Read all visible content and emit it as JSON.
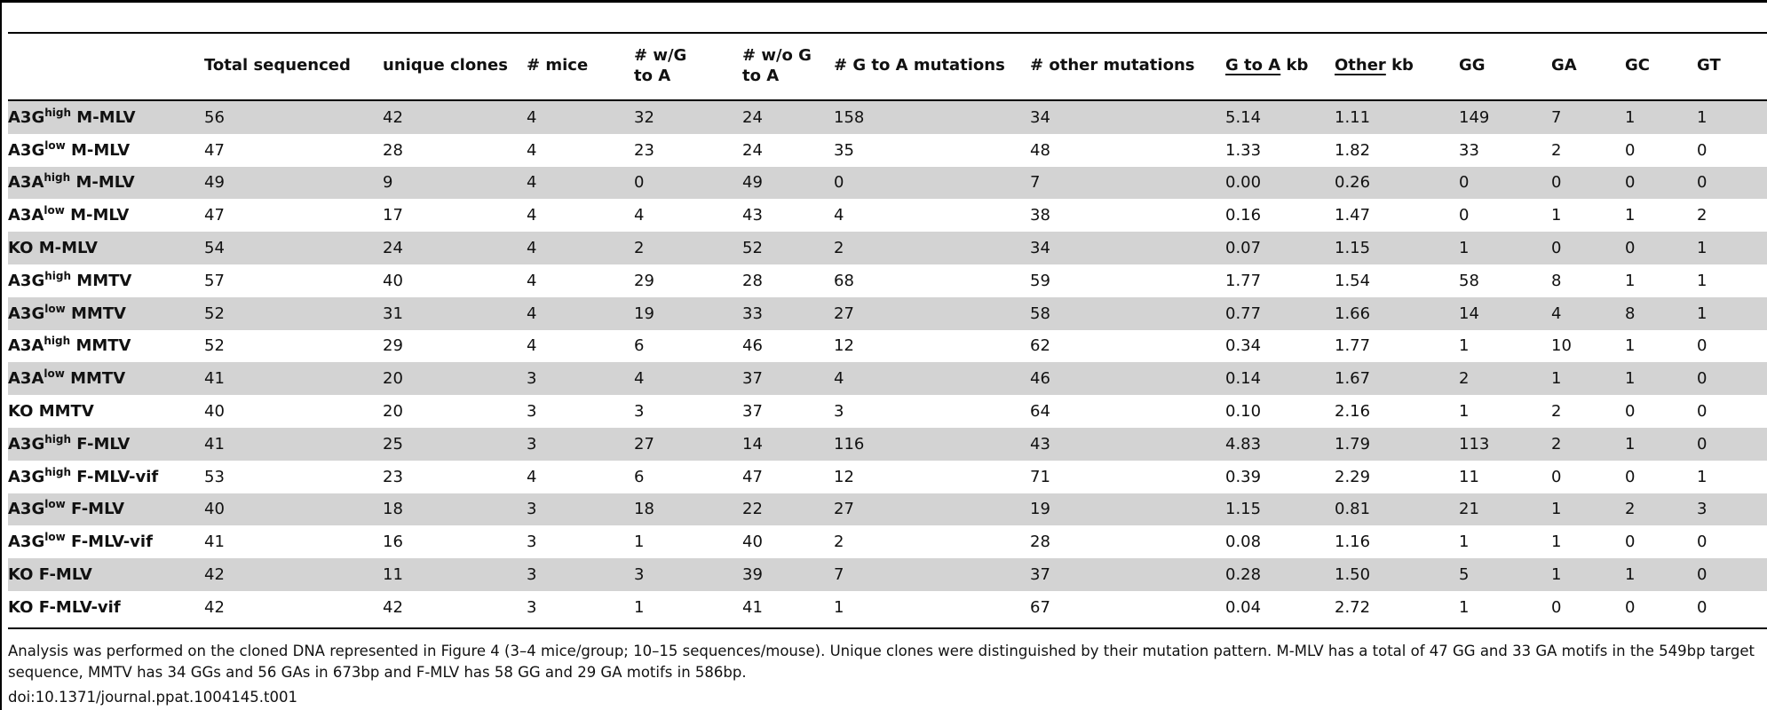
{
  "columns": [
    {
      "line1": "",
      "line2": ""
    },
    {
      "line1": "Total sequenced",
      "line2": ""
    },
    {
      "line1": "unique clones",
      "line2": ""
    },
    {
      "line1": "# mice",
      "line2": ""
    },
    {
      "line1": "# w/G",
      "line2": "to A"
    },
    {
      "line1": "# w/o G",
      "line2": "to A"
    },
    {
      "line1": "# G to A mutations",
      "line2": ""
    },
    {
      "line1": "# other mutations",
      "line2": ""
    },
    {
      "line1": "G to A",
      "line2": " kb"
    },
    {
      "line1": "Other",
      "line2": " kb"
    },
    {
      "line1": "GG",
      "line2": ""
    },
    {
      "line1": "GA",
      "line2": ""
    },
    {
      "line1": "GC",
      "line2": ""
    },
    {
      "line1": "GT",
      "line2": ""
    }
  ],
  "rows": [
    {
      "base": "A3G",
      "sup": "high",
      "virus": " M-MLV",
      "cells": [
        "56",
        "42",
        "4",
        "32",
        "24",
        "158",
        "34",
        "5.14",
        "1.11",
        "149",
        "7",
        "1",
        "1"
      ]
    },
    {
      "base": "A3G",
      "sup": "low",
      "virus": " M-MLV",
      "cells": [
        "47",
        "28",
        "4",
        "23",
        "24",
        "35",
        "48",
        "1.33",
        "1.82",
        "33",
        "2",
        "0",
        "0"
      ]
    },
    {
      "base": "A3A",
      "sup": "high",
      "virus": " M-MLV",
      "cells": [
        "49",
        "9",
        "4",
        "0",
        "49",
        "0",
        "7",
        "0.00",
        "0.26",
        "0",
        "0",
        "0",
        "0"
      ]
    },
    {
      "base": "A3A",
      "sup": "low",
      "virus": " M-MLV",
      "cells": [
        "47",
        "17",
        "4",
        "4",
        "43",
        "4",
        "38",
        "0.16",
        "1.47",
        "0",
        "1",
        "1",
        "2"
      ]
    },
    {
      "base": "KO",
      "sup": "",
      "virus": " M-MLV",
      "cells": [
        "54",
        "24",
        "4",
        "2",
        "52",
        "2",
        "34",
        "0.07",
        "1.15",
        "1",
        "0",
        "0",
        "1"
      ]
    },
    {
      "base": "A3G",
      "sup": "high",
      "virus": " MMTV",
      "cells": [
        "57",
        "40",
        "4",
        "29",
        "28",
        "68",
        "59",
        "1.77",
        "1.54",
        "58",
        "8",
        "1",
        "1"
      ]
    },
    {
      "base": "A3G",
      "sup": "low",
      "virus": " MMTV",
      "cells": [
        "52",
        "31",
        "4",
        "19",
        "33",
        "27",
        "58",
        "0.77",
        "1.66",
        "14",
        "4",
        "8",
        "1"
      ]
    },
    {
      "base": "A3A",
      "sup": "high",
      "virus": " MMTV",
      "cells": [
        "52",
        "29",
        "4",
        "6",
        "46",
        "12",
        "62",
        "0.34",
        "1.77",
        "1",
        "10",
        "1",
        "0"
      ]
    },
    {
      "base": "A3A",
      "sup": "low",
      "virus": " MMTV",
      "cells": [
        "41",
        "20",
        "3",
        "4",
        "37",
        "4",
        "46",
        "0.14",
        "1.67",
        "2",
        "1",
        "1",
        "0"
      ]
    },
    {
      "base": "KO",
      "sup": "",
      "virus": " MMTV",
      "cells": [
        "40",
        "20",
        "3",
        "3",
        "37",
        "3",
        "64",
        "0.10",
        "2.16",
        "1",
        "2",
        "0",
        "0"
      ]
    },
    {
      "base": "A3G",
      "sup": "high",
      "virus": " F-MLV",
      "cells": [
        "41",
        "25",
        "3",
        "27",
        "14",
        "116",
        "43",
        "4.83",
        "1.79",
        "113",
        "2",
        "1",
        "0"
      ]
    },
    {
      "base": "A3G",
      "sup": "high",
      "virus": " F-MLV-vif",
      "cells": [
        "53",
        "23",
        "4",
        "6",
        "47",
        "12",
        "71",
        "0.39",
        "2.29",
        "11",
        "0",
        "0",
        "1"
      ]
    },
    {
      "base": "A3G",
      "sup": "low",
      "virus": " F-MLV",
      "cells": [
        "40",
        "18",
        "3",
        "18",
        "22",
        "27",
        "19",
        "1.15",
        "0.81",
        "21",
        "1",
        "2",
        "3"
      ]
    },
    {
      "base": "A3G",
      "sup": "low",
      "virus": " F-MLV-vif",
      "cells": [
        "41",
        "16",
        "3",
        "1",
        "40",
        "2",
        "28",
        "0.08",
        "1.16",
        "1",
        "1",
        "0",
        "0"
      ]
    },
    {
      "base": "KO",
      "sup": "",
      "virus": " F-MLV",
      "cells": [
        "42",
        "11",
        "3",
        "3",
        "39",
        "7",
        "37",
        "0.28",
        "1.50",
        "5",
        "1",
        "1",
        "0"
      ]
    },
    {
      "base": "KO",
      "sup": "",
      "virus": " F-MLV-vif",
      "cells": [
        "42",
        "42",
        "3",
        "1",
        "41",
        "1",
        "67",
        "0.04",
        "2.72",
        "1",
        "0",
        "0",
        "0"
      ]
    }
  ],
  "footnote": "Analysis was performed on the cloned DNA represented in Figure 4 (3–4 mice/group; 10–15 sequences/mouse). Unique clones were distinguished by their mutation pattern. M-MLV has a total of 47 GG and 33 GA motifs in the 549bp target sequence, MMTV has 34 GGs and 56 GAs in 673bp and F-MLV has 58 GG and 29 GA motifs in 586bp.",
  "doi": "doi:10.1371/journal.ppat.1004145.t001"
}
